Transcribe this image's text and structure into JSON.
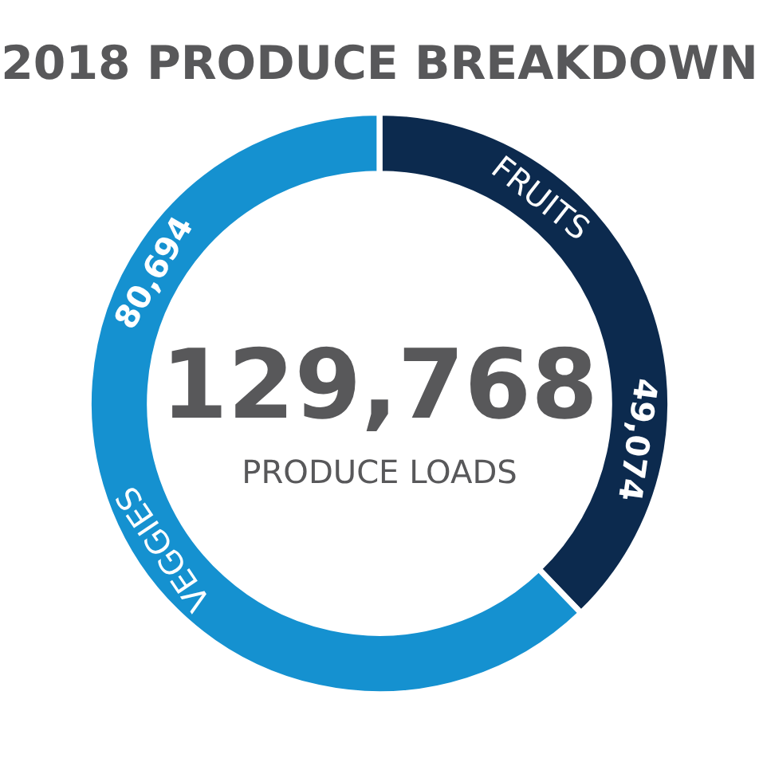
{
  "chart_data": {
    "type": "donut",
    "title": "2018 PRODUCE BREAKDOWN",
    "categories": [
      "FRUITS",
      "VEGGIES"
    ],
    "values": [
      49074,
      80694
    ],
    "colors": [
      "#0c2a4e",
      "#1591d0"
    ],
    "value_labels": [
      "49,074",
      "80,694"
    ],
    "annotations": [
      "129,768",
      "PRODUCE LOADS"
    ]
  }
}
